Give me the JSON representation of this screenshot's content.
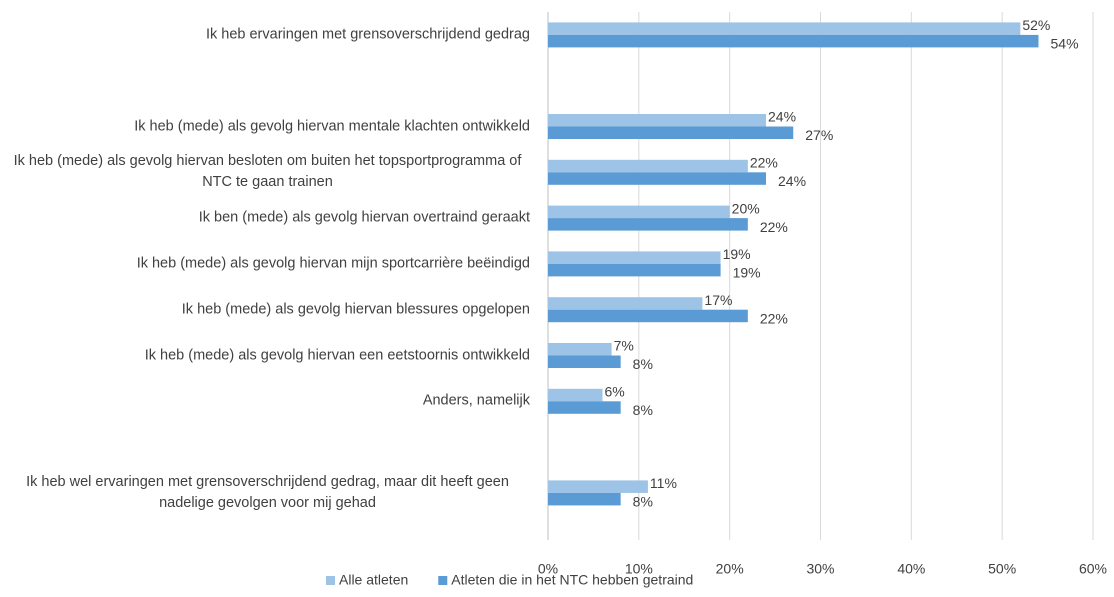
{
  "chart_data": {
    "type": "bar",
    "orientation": "horizontal",
    "categories": [
      "Ik heb ervaringen met grensoverschrijdend gedrag",
      null,
      "Ik heb (mede) als gevolg hiervan mentale klachten ontwikkeld",
      "Ik heb (mede) als gevolg hiervan besloten om buiten het topsportprogramma of NTC te gaan trainen",
      "Ik ben (mede) als gevolg hiervan overtraind geraakt",
      "Ik heb (mede) als gevolg hiervan mijn sportcarrière beëindigd",
      "Ik heb (mede) als gevolg hiervan blessures opgelopen",
      "Ik heb (mede) als gevolg hiervan een eetstoornis ontwikkeld",
      "Anders, namelijk",
      null,
      "Ik heb wel ervaringen met grensoverschrijdend gedrag, maar dit heeft geen nadelige gevolgen voor mij gehad"
    ],
    "series": [
      {
        "name": "Alle atleten",
        "color": "#9dc3e6",
        "values": [
          52,
          null,
          24,
          22,
          20,
          19,
          17,
          7,
          6,
          null,
          11
        ],
        "value_labels": [
          "52%",
          null,
          "24%",
          "22%",
          "20%",
          "19%",
          "17%",
          "7%",
          "6%",
          null,
          "11%"
        ]
      },
      {
        "name": "Atleten die in het NTC hebben getraind",
        "color": "#5b9bd5",
        "values": [
          54,
          null,
          27,
          24,
          22,
          19,
          22,
          8,
          8,
          null,
          8
        ],
        "value_labels": [
          "54%",
          null,
          "27%",
          "24%",
          "22%",
          "19%",
          "22%",
          "8%",
          "8%",
          null,
          "8%"
        ]
      }
    ],
    "xlim": [
      0,
      60
    ],
    "xticks": [
      {
        "value": 0,
        "label": "0%"
      },
      {
        "value": 10,
        "label": "10%"
      },
      {
        "value": 20,
        "label": "20%"
      },
      {
        "value": 30,
        "label": "30%"
      },
      {
        "value": 40,
        "label": "40%"
      },
      {
        "value": 50,
        "label": "50%"
      },
      {
        "value": 60,
        "label": "60%"
      }
    ],
    "grid": true,
    "legend": "bottom"
  }
}
